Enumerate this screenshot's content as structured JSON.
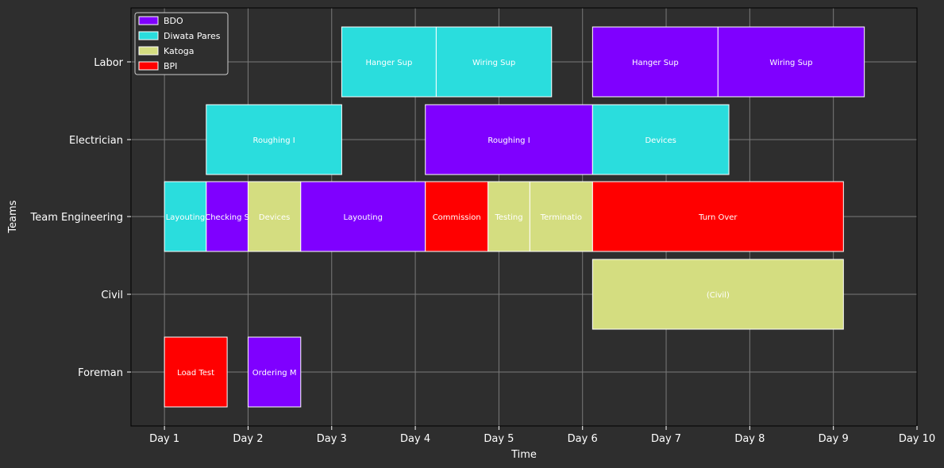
{
  "chart_data": {
    "type": "gantt",
    "title": "",
    "xlabel": "Time",
    "ylabel": "Teams",
    "x_ticks": [
      "Day 1",
      "Day 2",
      "Day 3",
      "Day 4",
      "Day 5",
      "Day 6",
      "Day 7",
      "Day 8",
      "Day 9",
      "Day 10"
    ],
    "xlim": [
      0.6,
      10
    ],
    "grid": true,
    "legend_placement": "top-left",
    "background_color": "#2e2e2e",
    "teams": [
      "Foreman",
      "Civil",
      "Team Engineering",
      "Electrician",
      "Labor"
    ],
    "series": [
      {
        "name": "BDO",
        "color": "#7f00ff"
      },
      {
        "name": "Diwata Pares",
        "color": "#2adddd"
      },
      {
        "name": "Katoga",
        "color": "#d4dd80"
      },
      {
        "name": "BPI",
        "color": "#ff0000"
      }
    ],
    "tasks": [
      {
        "team": "Labor",
        "label": "Hanger Sup",
        "series": "Diwata Pares",
        "start": 3.12,
        "end": 4.25
      },
      {
        "team": "Labor",
        "label": "Wiring Sup",
        "series": "Diwata Pares",
        "start": 4.25,
        "end": 5.63
      },
      {
        "team": "Labor",
        "label": "Hanger Sup",
        "series": "BDO",
        "start": 6.12,
        "end": 7.62
      },
      {
        "team": "Labor",
        "label": "Wiring Sup",
        "series": "BDO",
        "start": 7.62,
        "end": 9.37
      },
      {
        "team": "Electrician",
        "label": "Roughing I",
        "series": "Diwata Pares",
        "start": 1.5,
        "end": 3.12
      },
      {
        "team": "Electrician",
        "label": "Roughing I",
        "series": "BDO",
        "start": 4.12,
        "end": 6.12
      },
      {
        "team": "Electrician",
        "label": "Devices",
        "series": "Diwata Pares",
        "start": 6.12,
        "end": 7.75
      },
      {
        "team": "Team Engineering",
        "label": "Layouting",
        "series": "Diwata Pares",
        "start": 1.0,
        "end": 1.5
      },
      {
        "team": "Team Engineering",
        "label": "Checking S",
        "series": "BDO",
        "start": 1.5,
        "end": 2.0
      },
      {
        "team": "Team Engineering",
        "label": "Devices",
        "series": "Katoga",
        "start": 2.0,
        "end": 2.63
      },
      {
        "team": "Team Engineering",
        "label": "Layouting",
        "series": "BDO",
        "start": 2.63,
        "end": 4.12
      },
      {
        "team": "Team Engineering",
        "label": "Commission",
        "series": "BPI",
        "start": 4.12,
        "end": 4.87
      },
      {
        "team": "Team Engineering",
        "label": "Testing",
        "series": "Katoga",
        "start": 4.87,
        "end": 5.37
      },
      {
        "team": "Team Engineering",
        "label": "Terminatio",
        "series": "Katoga",
        "start": 5.37,
        "end": 6.12
      },
      {
        "team": "Team Engineering",
        "label": "Turn Over",
        "series": "BPI",
        "start": 6.12,
        "end": 9.12
      },
      {
        "team": "Civil",
        "label": "(Civil)",
        "series": "Katoga",
        "start": 6.12,
        "end": 9.12
      },
      {
        "team": "Foreman",
        "label": "Load Test",
        "series": "BPI",
        "start": 1.0,
        "end": 1.75
      },
      {
        "team": "Foreman",
        "label": "Ordering M",
        "series": "BDO",
        "start": 2.0,
        "end": 2.63
      }
    ]
  }
}
